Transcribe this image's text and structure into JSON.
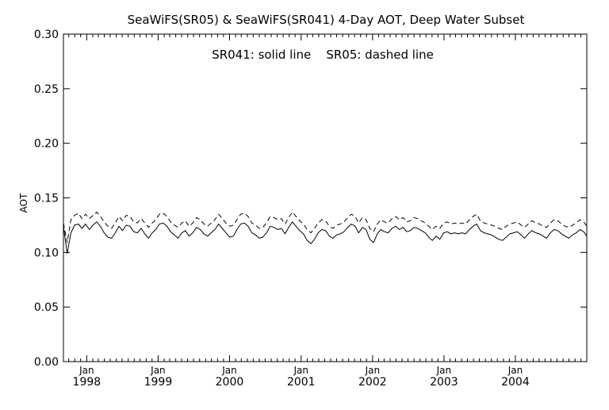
{
  "chart_data": {
    "type": "line",
    "title": "SeaWiFS(SR05) & SeaWiFS(SR041) 4-Day AOT, Deep Water Subset",
    "annotation": "SR041: solid line    SR05: dashed line",
    "xlabel": "",
    "ylabel": "AOT",
    "xlim": [
      "1997-09-04",
      "2004-12-31"
    ],
    "ylim": [
      0.0,
      0.3
    ],
    "yticks": [
      "0.00",
      "0.05",
      "0.10",
      "0.15",
      "0.20",
      "0.25",
      "0.30"
    ],
    "xticks": [
      {
        "month": "Jan",
        "year": "1998",
        "date": "1998-01-01"
      },
      {
        "month": "Jan",
        "year": "1999",
        "date": "1999-01-01"
      },
      {
        "month": "Jan",
        "year": "2000",
        "date": "2000-01-01"
      },
      {
        "month": "Jan",
        "year": "2001",
        "date": "2001-01-01"
      },
      {
        "month": "Jan",
        "year": "2002",
        "date": "2002-01-01"
      },
      {
        "month": "Jan",
        "year": "2003",
        "date": "2003-01-01"
      },
      {
        "month": "Jan",
        "year": "2004",
        "date": "2004-01-01"
      }
    ],
    "grid": false,
    "x": [
      "1997-09-04",
      "1997-09-23",
      "1997-10-12",
      "1997-10-31",
      "1997-11-19",
      "1997-12-08",
      "1997-12-26",
      "1998-01-14",
      "1998-02-02",
      "1998-02-21",
      "1998-03-12",
      "1998-03-31",
      "1998-04-19",
      "1998-05-08",
      "1998-05-27",
      "1998-06-15",
      "1998-07-03",
      "1998-07-22",
      "1998-08-10",
      "1998-08-29",
      "1998-09-17",
      "1998-10-06",
      "1998-10-25",
      "1998-11-13",
      "1998-12-02",
      "1998-12-20",
      "1999-01-08",
      "1999-01-27",
      "1999-02-15",
      "1999-03-06",
      "1999-03-25",
      "1999-04-13",
      "1999-05-02",
      "1999-05-20",
      "1999-06-08",
      "1999-06-27",
      "1999-07-16",
      "1999-08-04",
      "1999-08-23",
      "1999-09-11",
      "1999-09-29",
      "1999-10-18",
      "1999-11-06",
      "1999-11-25",
      "1999-12-14",
      "2000-01-02",
      "2000-01-21",
      "2000-02-08",
      "2000-02-27",
      "2000-03-17",
      "2000-04-05",
      "2000-04-24",
      "2000-05-13",
      "2000-06-01",
      "2000-06-19",
      "2000-07-08",
      "2000-07-27",
      "2000-08-15",
      "2000-09-03",
      "2000-09-22",
      "2000-10-11",
      "2000-10-29",
      "2000-11-17",
      "2000-12-06",
      "2000-12-25",
      "2001-01-13",
      "2001-02-01",
      "2001-02-20",
      "2001-03-10",
      "2001-03-29",
      "2001-04-17",
      "2001-05-06",
      "2001-05-25",
      "2001-06-13",
      "2001-07-01",
      "2001-07-20",
      "2001-08-08",
      "2001-08-27",
      "2001-09-15",
      "2001-10-04",
      "2001-10-22",
      "2001-11-10",
      "2001-11-29",
      "2001-12-18",
      "2002-01-06",
      "2002-01-25",
      "2002-02-12",
      "2002-03-03",
      "2002-03-22",
      "2002-04-10",
      "2002-04-29",
      "2002-05-18",
      "2002-06-06",
      "2002-06-24",
      "2002-07-13",
      "2002-08-01",
      "2002-08-20",
      "2002-09-08",
      "2002-09-27",
      "2002-10-15",
      "2002-11-03",
      "2002-11-22",
      "2002-12-11",
      "2002-12-30",
      "2003-01-18",
      "2003-02-06",
      "2003-02-24",
      "2003-03-15",
      "2003-04-03",
      "2003-04-22",
      "2003-05-11",
      "2003-05-30",
      "2003-06-17",
      "2003-07-06",
      "2003-07-25",
      "2003-08-13",
      "2003-09-01",
      "2003-09-20",
      "2003-10-08",
      "2003-10-27",
      "2003-11-15",
      "2003-12-04",
      "2003-12-23",
      "2004-01-11",
      "2004-01-30",
      "2004-02-17",
      "2004-03-07",
      "2004-03-26",
      "2004-04-14",
      "2004-05-03",
      "2004-05-21",
      "2004-06-09",
      "2004-06-28",
      "2004-07-17",
      "2004-08-05",
      "2004-08-24",
      "2004-09-11",
      "2004-09-30",
      "2004-10-19",
      "2004-11-07",
      "2004-11-26",
      "2004-12-15",
      "2004-12-31"
    ],
    "series": [
      {
        "name": "SR041",
        "style": "solid",
        "values": [
          0.124,
          0.099,
          0.118,
          0.125,
          0.126,
          0.122,
          0.126,
          0.121,
          0.125,
          0.128,
          0.124,
          0.118,
          0.114,
          0.113,
          0.118,
          0.124,
          0.12,
          0.125,
          0.124,
          0.119,
          0.118,
          0.122,
          0.117,
          0.113,
          0.118,
          0.121,
          0.126,
          0.127,
          0.124,
          0.119,
          0.116,
          0.113,
          0.118,
          0.12,
          0.115,
          0.118,
          0.123,
          0.121,
          0.117,
          0.115,
          0.118,
          0.121,
          0.126,
          0.122,
          0.118,
          0.114,
          0.115,
          0.121,
          0.126,
          0.127,
          0.124,
          0.118,
          0.116,
          0.113,
          0.114,
          0.118,
          0.124,
          0.123,
          0.121,
          0.122,
          0.117,
          0.123,
          0.128,
          0.124,
          0.12,
          0.117,
          0.111,
          0.108,
          0.112,
          0.118,
          0.121,
          0.12,
          0.115,
          0.113,
          0.116,
          0.117,
          0.119,
          0.123,
          0.126,
          0.124,
          0.118,
          0.123,
          0.121,
          0.112,
          0.109,
          0.117,
          0.121,
          0.119,
          0.118,
          0.122,
          0.124,
          0.121,
          0.123,
          0.119,
          0.12,
          0.123,
          0.122,
          0.12,
          0.118,
          0.114,
          0.111,
          0.115,
          0.112,
          0.118,
          0.119,
          0.117,
          0.118,
          0.117,
          0.118,
          0.117,
          0.121,
          0.124,
          0.126,
          0.12,
          0.118,
          0.117,
          0.116,
          0.114,
          0.112,
          0.111,
          0.114,
          0.117,
          0.118,
          0.119,
          0.116,
          0.113,
          0.117,
          0.12,
          0.118,
          0.117,
          0.115,
          0.113,
          0.118,
          0.121,
          0.12,
          0.117,
          0.115,
          0.113,
          0.116,
          0.118,
          0.121,
          0.119,
          0.115
        ]
      },
      {
        "name": "SR05",
        "style": "dashed",
        "values": [
          0.127,
          0.109,
          0.13,
          0.134,
          0.136,
          0.131,
          0.135,
          0.131,
          0.134,
          0.137,
          0.133,
          0.128,
          0.124,
          0.122,
          0.127,
          0.133,
          0.129,
          0.134,
          0.133,
          0.128,
          0.127,
          0.131,
          0.127,
          0.123,
          0.127,
          0.13,
          0.135,
          0.136,
          0.133,
          0.128,
          0.125,
          0.123,
          0.127,
          0.129,
          0.124,
          0.127,
          0.132,
          0.13,
          0.126,
          0.124,
          0.127,
          0.13,
          0.135,
          0.131,
          0.127,
          0.124,
          0.125,
          0.13,
          0.135,
          0.136,
          0.133,
          0.127,
          0.125,
          0.122,
          0.123,
          0.127,
          0.133,
          0.132,
          0.13,
          0.131,
          0.126,
          0.132,
          0.137,
          0.133,
          0.129,
          0.126,
          0.121,
          0.118,
          0.122,
          0.127,
          0.13,
          0.129,
          0.124,
          0.122,
          0.125,
          0.126,
          0.128,
          0.132,
          0.135,
          0.133,
          0.127,
          0.132,
          0.13,
          0.122,
          0.119,
          0.126,
          0.13,
          0.128,
          0.127,
          0.131,
          0.133,
          0.13,
          0.132,
          0.128,
          0.129,
          0.132,
          0.131,
          0.129,
          0.127,
          0.124,
          0.121,
          0.124,
          0.122,
          0.127,
          0.128,
          0.126,
          0.127,
          0.126,
          0.127,
          0.126,
          0.13,
          0.133,
          0.135,
          0.129,
          0.127,
          0.126,
          0.125,
          0.124,
          0.122,
          0.121,
          0.124,
          0.126,
          0.127,
          0.128,
          0.125,
          0.123,
          0.126,
          0.129,
          0.127,
          0.126,
          0.124,
          0.123,
          0.127,
          0.13,
          0.129,
          0.126,
          0.124,
          0.123,
          0.125,
          0.127,
          0.13,
          0.128,
          0.124
        ]
      }
    ]
  }
}
